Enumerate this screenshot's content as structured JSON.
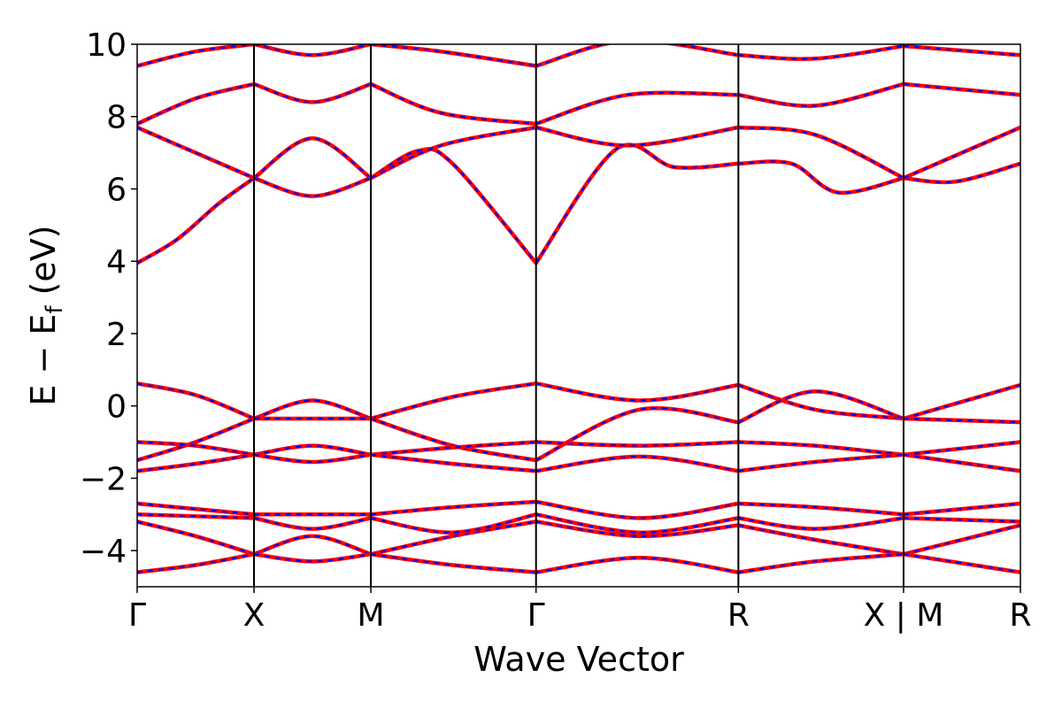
{
  "chart_data": {
    "type": "line",
    "title": "",
    "xlabel": "Wave Vector",
    "ylabel": "E − E_f (eV)",
    "ylabel_parts": {
      "main": "E − E",
      "sub": "f",
      "unit": " (eV)"
    },
    "ylim": [
      -5,
      10
    ],
    "yticks": [
      -4,
      -2,
      0,
      2,
      4,
      6,
      8,
      10
    ],
    "ytick_labels": [
      "−4",
      "−2",
      "0",
      "2",
      "4",
      "6",
      "8",
      "10"
    ],
    "kpath": [
      {
        "label": "Γ",
        "pos": 0.0
      },
      {
        "label": "X",
        "pos": 0.5
      },
      {
        "label": "M",
        "pos": 1.0
      },
      {
        "label": "Γ",
        "pos": 1.707
      },
      {
        "label": "R",
        "pos": 2.573
      },
      {
        "label": "X | M",
        "pos": 3.28
      },
      {
        "label": "R",
        "pos": 3.78
      }
    ],
    "xlim": [
      0,
      3.78
    ],
    "grid": false,
    "legend": "none",
    "colors": {
      "primary": "#ff0000",
      "overlay": "#0000ff",
      "kline": "#000000"
    },
    "series": [
      {
        "style": "solid-red-dashed-blue",
        "segments": [
          {
            "x": [
              0,
              0.17,
              0.35,
              0.5
            ],
            "y": [
              3.95,
              4.6,
              5.6,
              6.3
            ]
          },
          {
            "x": [
              0.5,
              0.75,
              1.0
            ],
            "y": [
              6.3,
              7.4,
              6.3
            ]
          },
          {
            "x": [
              1.0,
              1.2,
              1.35,
              1.707
            ],
            "y": [
              6.3,
              7.05,
              6.7,
              3.95
            ]
          },
          {
            "x": [
              1.707,
              2.05,
              2.3,
              2.573
            ],
            "y": [
              3.95,
              7.1,
              6.6,
              6.7
            ]
          },
          {
            "x": [
              2.573,
              2.8,
              3.0,
              3.28
            ],
            "y": [
              6.7,
              6.7,
              5.9,
              6.3
            ]
          },
          {
            "x": [
              3.28,
              3.5,
              3.78
            ],
            "y": [
              6.3,
              6.2,
              6.7
            ]
          }
        ]
      },
      {
        "style": "solid-red-dashed-blue",
        "segments": [
          {
            "x": [
              0,
              0.25,
              0.5
            ],
            "y": [
              7.7,
              7.0,
              6.3
            ]
          },
          {
            "x": [
              0.5,
              0.75,
              1.0
            ],
            "y": [
              6.3,
              5.8,
              6.3
            ]
          },
          {
            "x": [
              1.0,
              1.3,
              1.707
            ],
            "y": [
              6.3,
              7.2,
              7.7
            ]
          },
          {
            "x": [
              1.707,
              2.1,
              2.573
            ],
            "y": [
              7.7,
              7.2,
              7.7
            ]
          },
          {
            "x": [
              2.573,
              2.9,
              3.28
            ],
            "y": [
              7.7,
              7.5,
              6.3
            ]
          },
          {
            "x": [
              3.28,
              3.78
            ],
            "y": [
              6.3,
              7.7
            ]
          }
        ]
      },
      {
        "style": "solid-red-dashed-blue",
        "segments": [
          {
            "x": [
              0,
              0.25,
              0.5
            ],
            "y": [
              7.8,
              8.5,
              8.9
            ]
          },
          {
            "x": [
              0.5,
              0.75,
              1.0
            ],
            "y": [
              8.9,
              8.4,
              8.9
            ]
          },
          {
            "x": [
              1.0,
              1.3,
              1.707
            ],
            "y": [
              8.9,
              8.1,
              7.8
            ]
          },
          {
            "x": [
              1.707,
              2.1,
              2.573
            ],
            "y": [
              7.8,
              8.6,
              8.6
            ]
          },
          {
            "x": [
              2.573,
              2.9,
              3.28
            ],
            "y": [
              8.6,
              8.3,
              8.9
            ]
          },
          {
            "x": [
              3.28,
              3.78
            ],
            "y": [
              8.9,
              8.6
            ]
          }
        ]
      },
      {
        "style": "solid-red-dashed-blue",
        "segments": [
          {
            "x": [
              0,
              0.25,
              0.5
            ],
            "y": [
              9.4,
              9.8,
              10.0
            ]
          },
          {
            "x": [
              0.5,
              0.75,
              1.0
            ],
            "y": [
              10.0,
              9.7,
              10.0
            ]
          },
          {
            "x": [
              1.0,
              1.3,
              1.707
            ],
            "y": [
              10.0,
              9.8,
              9.4
            ]
          },
          {
            "x": [
              1.707,
              2.1,
              2.573
            ],
            "y": [
              9.4,
              10.1,
              9.7
            ]
          },
          {
            "x": [
              2.573,
              2.9,
              3.28
            ],
            "y": [
              9.7,
              9.6,
              9.95
            ]
          },
          {
            "x": [
              3.28,
              3.78
            ],
            "y": [
              9.95,
              9.7
            ]
          }
        ]
      },
      {
        "style": "solid-red-dashed-blue",
        "segments": [
          {
            "x": [
              0,
              0.25,
              0.5
            ],
            "y": [
              0.62,
              0.3,
              -0.35
            ]
          },
          {
            "x": [
              0.5,
              0.75,
              1.0
            ],
            "y": [
              -0.35,
              0.15,
              -0.35
            ]
          },
          {
            "x": [
              1.0,
              1.35,
              1.707
            ],
            "y": [
              -0.35,
              0.25,
              0.62
            ]
          },
          {
            "x": [
              1.707,
              2.15,
              2.573
            ],
            "y": [
              0.62,
              0.15,
              0.58
            ]
          },
          {
            "x": [
              2.573,
              2.9,
              3.28
            ],
            "y": [
              0.58,
              -0.1,
              -0.35
            ]
          },
          {
            "x": [
              3.28,
              3.78
            ],
            "y": [
              -0.35,
              0.58
            ]
          }
        ]
      },
      {
        "style": "solid-red-dashed-blue",
        "segments": [
          {
            "x": [
              0,
              0.25,
              0.5
            ],
            "y": [
              -1.5,
              -1.0,
              -0.35
            ]
          },
          {
            "x": [
              0.5,
              1.0
            ],
            "y": [
              -0.35,
              -0.35
            ]
          },
          {
            "x": [
              1.0,
              1.35,
              1.707
            ],
            "y": [
              -0.35,
              -1.1,
              -1.5
            ]
          },
          {
            "x": [
              1.707,
              2.15,
              2.573
            ],
            "y": [
              -1.5,
              -0.1,
              -0.45
            ]
          },
          {
            "x": [
              2.573,
              2.9,
              3.28
            ],
            "y": [
              -0.45,
              0.4,
              -0.35
            ]
          },
          {
            "x": [
              3.28,
              3.78
            ],
            "y": [
              -0.35,
              -0.45
            ]
          }
        ]
      },
      {
        "style": "solid-red-dashed-blue",
        "segments": [
          {
            "x": [
              0,
              0.25,
              0.5
            ],
            "y": [
              -1.0,
              -1.1,
              -1.35
            ]
          },
          {
            "x": [
              0.5,
              0.75,
              1.0
            ],
            "y": [
              -1.35,
              -1.1,
              -1.35
            ]
          },
          {
            "x": [
              1.0,
              1.35,
              1.707
            ],
            "y": [
              -1.35,
              -1.15,
              -1.0
            ]
          },
          {
            "x": [
              1.707,
              2.15,
              2.573
            ],
            "y": [
              -1.0,
              -1.1,
              -1.0
            ]
          },
          {
            "x": [
              2.573,
              2.9,
              3.28
            ],
            "y": [
              -1.0,
              -1.1,
              -1.35
            ]
          },
          {
            "x": [
              3.28,
              3.78
            ],
            "y": [
              -1.35,
              -1.0
            ]
          }
        ]
      },
      {
        "style": "solid-red-dashed-blue",
        "segments": [
          {
            "x": [
              0,
              0.25,
              0.5
            ],
            "y": [
              -1.8,
              -1.6,
              -1.35
            ]
          },
          {
            "x": [
              0.5,
              0.75,
              1.0
            ],
            "y": [
              -1.35,
              -1.55,
              -1.35
            ]
          },
          {
            "x": [
              1.0,
              1.35,
              1.707
            ],
            "y": [
              -1.35,
              -1.6,
              -1.8
            ]
          },
          {
            "x": [
              1.707,
              2.15,
              2.573
            ],
            "y": [
              -1.8,
              -1.4,
              -1.8
            ]
          },
          {
            "x": [
              2.573,
              2.9,
              3.28
            ],
            "y": [
              -1.8,
              -1.55,
              -1.35
            ]
          },
          {
            "x": [
              3.28,
              3.78
            ],
            "y": [
              -1.35,
              -1.8
            ]
          }
        ]
      },
      {
        "style": "solid-red-dashed-blue",
        "segments": [
          {
            "x": [
              0,
              0.25,
              0.5
            ],
            "y": [
              -2.7,
              -2.85,
              -3.0
            ]
          },
          {
            "x": [
              0.5,
              1.0
            ],
            "y": [
              -3.0,
              -3.0
            ]
          },
          {
            "x": [
              1.0,
              1.35,
              1.707
            ],
            "y": [
              -3.0,
              -2.8,
              -2.65
            ]
          },
          {
            "x": [
              1.707,
              2.15,
              2.573
            ],
            "y": [
              -2.65,
              -3.1,
              -2.7
            ]
          },
          {
            "x": [
              2.573,
              2.9,
              3.28
            ],
            "y": [
              -2.7,
              -2.8,
              -3.0
            ]
          },
          {
            "x": [
              3.28,
              3.78
            ],
            "y": [
              -3.0,
              -2.7
            ]
          }
        ]
      },
      {
        "style": "solid-red-dashed-blue",
        "segments": [
          {
            "x": [
              0,
              0.25,
              0.5
            ],
            "y": [
              -3.2,
              -3.6,
              -4.1
            ]
          },
          {
            "x": [
              0.5,
              0.75,
              1.0
            ],
            "y": [
              -4.1,
              -3.6,
              -4.1
            ]
          },
          {
            "x": [
              1.0,
              1.35,
              1.707
            ],
            "y": [
              -4.1,
              -3.6,
              -3.2
            ]
          },
          {
            "x": [
              1.707,
              2.15,
              2.573
            ],
            "y": [
              -3.2,
              -3.6,
              -3.3
            ]
          },
          {
            "x": [
              2.573,
              2.9,
              3.28
            ],
            "y": [
              -3.3,
              -3.7,
              -4.1
            ]
          },
          {
            "x": [
              3.28,
              3.78
            ],
            "y": [
              -4.1,
              -3.3
            ]
          }
        ]
      },
      {
        "style": "solid-red-dashed-blue",
        "segments": [
          {
            "x": [
              0,
              0.25,
              0.5
            ],
            "y": [
              -4.6,
              -4.4,
              -4.1
            ]
          },
          {
            "x": [
              0.5,
              0.75,
              1.0
            ],
            "y": [
              -4.1,
              -4.3,
              -4.1
            ]
          },
          {
            "x": [
              1.0,
              1.35,
              1.707
            ],
            "y": [
              -4.1,
              -4.4,
              -4.6
            ]
          },
          {
            "x": [
              1.707,
              2.15,
              2.573
            ],
            "y": [
              -4.6,
              -4.2,
              -4.6
            ]
          },
          {
            "x": [
              2.573,
              2.9,
              3.28
            ],
            "y": [
              -4.6,
              -4.3,
              -4.1
            ]
          },
          {
            "x": [
              3.28,
              3.78
            ],
            "y": [
              -4.1,
              -4.6
            ]
          }
        ]
      },
      {
        "style": "solid-red-dashed-blue",
        "segments": [
          {
            "x": [
              0,
              0.5
            ],
            "y": [
              -3.0,
              -3.1
            ]
          },
          {
            "x": [
              0.5,
              0.75,
              1.0
            ],
            "y": [
              -3.1,
              -3.4,
              -3.1
            ]
          },
          {
            "x": [
              1.0,
              1.35,
              1.707
            ],
            "y": [
              -3.1,
              -3.5,
              -3.0
            ]
          },
          {
            "x": [
              1.707,
              2.15,
              2.573
            ],
            "y": [
              -3.0,
              -3.5,
              -3.1
            ]
          },
          {
            "x": [
              2.573,
              2.9,
              3.28
            ],
            "y": [
              -3.1,
              -3.4,
              -3.1
            ]
          },
          {
            "x": [
              3.28,
              3.78
            ],
            "y": [
              -3.1,
              -3.2
            ]
          }
        ]
      }
    ]
  }
}
